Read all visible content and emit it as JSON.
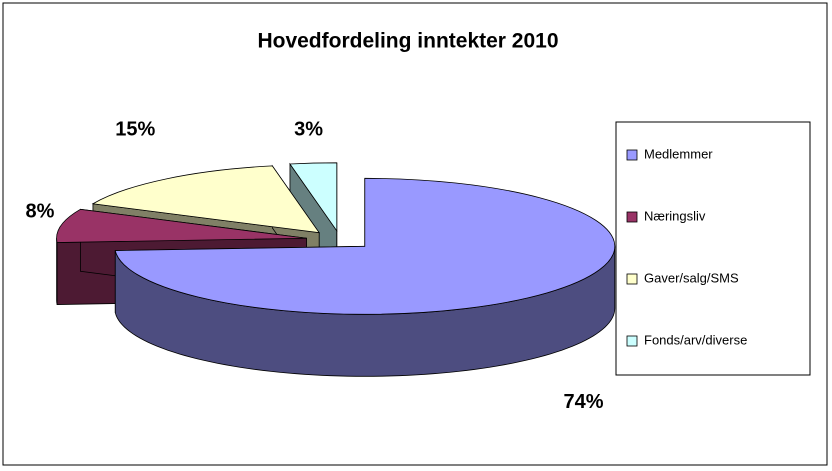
{
  "chart_data": {
    "type": "pie",
    "title": "Hovedfordeling inntekter 2010",
    "categories": [
      "Medlemmer",
      "Næringsliv",
      "Gaver/salg/SMS",
      "Fonds/arv/diverse"
    ],
    "values": [
      74,
      8,
      15,
      3
    ],
    "value_labels": [
      "74%",
      "8%",
      "15%",
      "3%"
    ],
    "colors": [
      "#9999ff",
      "#993366",
      "#ffffcc",
      "#ccffff"
    ],
    "legend": "right"
  }
}
